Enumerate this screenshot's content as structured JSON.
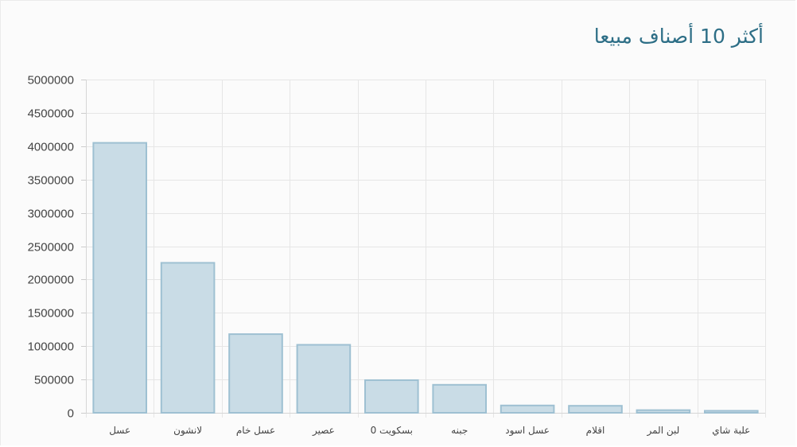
{
  "panel": {
    "title": "أكثر 10 أصناف مبيعا"
  },
  "colors": {
    "bar_fill": "#c9dce6",
    "bar_stroke": "#9ec0d2",
    "grid": "#e6e6e6",
    "title": "#2d6e86"
  },
  "chart_data": {
    "type": "bar",
    "title": "أكثر 10 أصناف مبيعا",
    "xlabel": "",
    "ylabel": "",
    "categories": [
      "عسل",
      "لانشون",
      "عسل خام",
      "عصير",
      "بسكويت 0",
      "جبنه",
      "عسل اسود",
      "اقلام",
      "لبن المر",
      "علبة شاي"
    ],
    "values": [
      4050000,
      2250000,
      1180000,
      1020000,
      490000,
      420000,
      110000,
      105000,
      40000,
      30000
    ],
    "ylim": [
      0,
      5000000
    ],
    "yticks": [
      "0",
      "500000",
      "1000000",
      "1500000",
      "2000000",
      "2500000",
      "3000000",
      "3500000",
      "4000000",
      "4500000",
      "5000000"
    ],
    "grid": true,
    "legend": "none"
  }
}
